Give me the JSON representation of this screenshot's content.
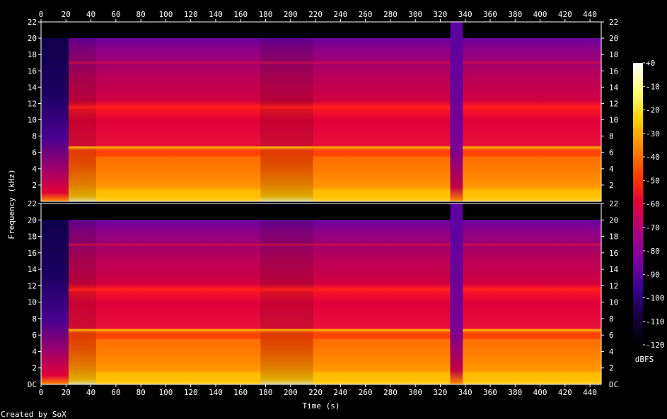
{
  "chart_data": {
    "type": "heatmap",
    "title": "",
    "xlabel": "Time (s)",
    "ylabel": "Frequency (kHz)",
    "xlim": [
      0,
      449
    ],
    "ylim": [
      0,
      22
    ],
    "x_ticks": [
      0,
      20,
      40,
      60,
      80,
      100,
      120,
      140,
      160,
      180,
      200,
      220,
      240,
      260,
      280,
      300,
      320,
      340,
      360,
      380,
      400,
      420,
      440
    ],
    "y_ticks": [
      2,
      4,
      6,
      8,
      10,
      12,
      14,
      16,
      18,
      20,
      22
    ],
    "y_tick_labels_left_top": [
      "22",
      "20",
      "18",
      "16",
      "14",
      "12",
      "10",
      "8",
      "6",
      "4",
      "2"
    ],
    "y_tick_labels_left_bottom": [
      "22",
      "20",
      "18",
      "16",
      "14",
      "12",
      "10",
      "8",
      "6",
      "4",
      "2",
      "DC"
    ],
    "channels": 2,
    "colorbar": {
      "label": "dBFS",
      "ticks": [
        0,
        -10,
        -20,
        -30,
        -40,
        -50,
        -60,
        -70,
        -80,
        -90,
        -100,
        -110,
        -120
      ],
      "tick_labels": [
        "+0",
        "-10",
        "-20",
        "-30",
        "-40",
        "-50",
        "-60",
        "-70",
        "-80",
        "-90",
        "-100",
        "-110",
        "-120"
      ],
      "range": [
        -120,
        0
      ],
      "colors": [
        "#000000",
        "#14003c",
        "#3a008a",
        "#7a00a0",
        "#b0007e",
        "#e0003a",
        "#ff3a00",
        "#ff8a00",
        "#ffd000",
        "#ffff80",
        "#ffffff"
      ]
    },
    "segments_seconds": [
      {
        "start": 0,
        "end": 22,
        "level": "faint"
      },
      {
        "start": 22,
        "end": 44,
        "level": "medium"
      },
      {
        "start": 44,
        "end": 176,
        "level": "loud"
      },
      {
        "start": 176,
        "end": 218,
        "level": "medium"
      },
      {
        "start": 218,
        "end": 328,
        "level": "loud"
      },
      {
        "start": 328,
        "end": 338,
        "level": "quiet"
      },
      {
        "start": 338,
        "end": 449,
        "level": "loud"
      }
    ],
    "lowpass_cutoff_khz": 20,
    "tone_band_khz": 6.6
  },
  "footer": {
    "credit": "Created by SoX"
  }
}
